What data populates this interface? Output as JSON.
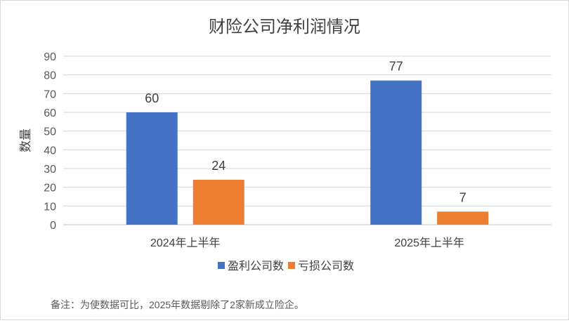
{
  "chart_data": {
    "type": "bar",
    "title": "财险公司净利润情况",
    "ylabel": "数量",
    "xlabel": "",
    "categories": [
      "2024年上半年",
      "2025年上半年"
    ],
    "series": [
      {
        "name": "盈利公司数",
        "values": [
          60,
          77
        ],
        "color": "#4472c4"
      },
      {
        "name": "亏损公司数",
        "values": [
          24,
          7
        ],
        "color": "#ed7d31"
      }
    ],
    "ylim": [
      0,
      90
    ],
    "yticks": [
      0,
      10,
      20,
      30,
      40,
      50,
      60,
      70,
      80,
      90
    ],
    "grid": true,
    "legend": "bottom",
    "data_labels": true
  },
  "note": "备注：为使数据可比，2025年数据剔除了2家新成立险企。"
}
